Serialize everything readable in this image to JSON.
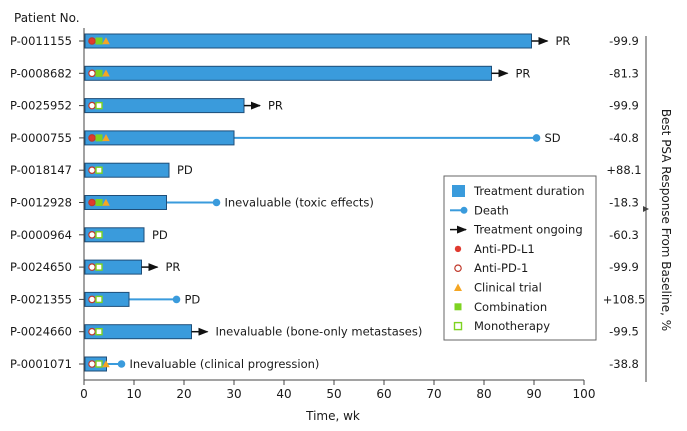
{
  "chart_data": {
    "type": "bar",
    "xlabel": "Time, wk",
    "ylabel": "Patient No.",
    "right_axis_label": "Best PSA Response From Baseline, %",
    "xlim": [
      0,
      100
    ],
    "xticks": [
      0,
      10,
      20,
      30,
      40,
      50,
      60,
      70,
      80,
      90,
      100
    ],
    "colors": {
      "bar": "#3a9bdc",
      "bar_stroke": "#1f4e79",
      "death": "#3a9bdc",
      "anti_pd_l1": "#e03a2f",
      "anti_pd_1": "#c0392b",
      "clinical_trial": "#f5a623",
      "combination": "#7ed321",
      "monotherapy": "#7ed321"
    },
    "patients": [
      {
        "id": "P-0011155",
        "duration": 89.5,
        "ongoing": true,
        "death": null,
        "outcome": "PR",
        "psa": "-99.9",
        "drug": "anti-pd-l1",
        "trial": true,
        "combo": true
      },
      {
        "id": "P-0008682",
        "duration": 81.5,
        "ongoing": true,
        "death": null,
        "outcome": "PR",
        "psa": "-81.3",
        "drug": "anti-pd-1",
        "trial": true,
        "combo": true
      },
      {
        "id": "P-0025952",
        "duration": 32,
        "ongoing": true,
        "death": null,
        "outcome": "PR",
        "psa": "-99.9",
        "drug": "anti-pd-1",
        "trial": false,
        "combo": false
      },
      {
        "id": "P-0000755",
        "duration": 30,
        "ongoing": false,
        "death": 90.5,
        "outcome": "SD",
        "psa": "-40.8",
        "drug": "anti-pd-l1",
        "trial": true,
        "combo": true
      },
      {
        "id": "P-0018147",
        "duration": 17,
        "ongoing": false,
        "death": null,
        "outcome": "PD",
        "psa": "+88.1",
        "drug": "anti-pd-1",
        "trial": false,
        "combo": false
      },
      {
        "id": "P-0012928",
        "duration": 16.5,
        "ongoing": false,
        "death": 26.5,
        "outcome": "Inevaluable (toxic effects)",
        "psa": "-18.3",
        "drug": "anti-pd-l1",
        "trial": true,
        "combo": true
      },
      {
        "id": "P-0000964",
        "duration": 12,
        "ongoing": false,
        "death": null,
        "outcome": "PD",
        "psa": "-60.3",
        "drug": "anti-pd-1",
        "trial": false,
        "combo": false
      },
      {
        "id": "P-0024650",
        "duration": 11.5,
        "ongoing": true,
        "death": null,
        "outcome": "PR",
        "psa": "-99.9",
        "drug": "anti-pd-1",
        "trial": false,
        "combo": false
      },
      {
        "id": "P-0021355",
        "duration": 9,
        "ongoing": false,
        "death": 18.5,
        "outcome": "PD",
        "psa": "+108.5",
        "drug": "anti-pd-1",
        "trial": false,
        "combo": false
      },
      {
        "id": "P-0024660",
        "duration": 21.5,
        "ongoing": true,
        "death": null,
        "outcome": "Inevaluable (bone-only metastases)",
        "psa": "-99.5",
        "drug": "anti-pd-1",
        "trial": false,
        "combo": false
      },
      {
        "id": "P-0001071",
        "duration": 4.5,
        "ongoing": false,
        "death": 7.5,
        "outcome": "Inevaluable (clinical progression)",
        "psa": "-38.8",
        "drug": "anti-pd-1",
        "trial": true,
        "combo": false
      }
    ],
    "legend": {
      "placement": "right-middle",
      "items": [
        {
          "key": "treatment-duration",
          "label": "Treatment duration"
        },
        {
          "key": "death",
          "label": "Death"
        },
        {
          "key": "treatment-ongoing",
          "label": "Treatment ongoing"
        },
        {
          "key": "anti-pd-l1",
          "label": "Anti-PD-L1"
        },
        {
          "key": "anti-pd-1",
          "label": "Anti-PD-1"
        },
        {
          "key": "clinical-trial",
          "label": "Clinical trial"
        },
        {
          "key": "combination",
          "label": "Combination"
        },
        {
          "key": "monotherapy",
          "label": "Monotherapy"
        }
      ]
    }
  }
}
